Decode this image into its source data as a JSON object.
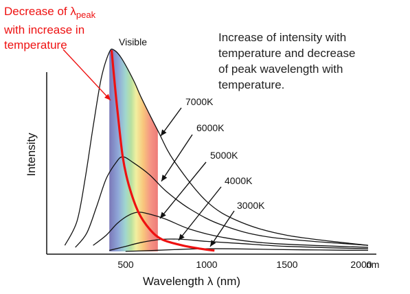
{
  "annotations": {
    "red_title": {
      "line1_prefix": "Decrease of λ",
      "line1_subscript": "peak",
      "line2": "with increase in",
      "line3": "temperature"
    },
    "note_lines": [
      "Increase of intensity with",
      "temperature and decrease",
      "of peak wavelength with",
      "temperature."
    ],
    "visible_label": "Visible"
  },
  "chart_data": {
    "type": "line",
    "xlabel": "Wavelength λ (nm)",
    "ylabel": "Intensity",
    "x_unit": "nm",
    "xlim": [
      0,
      2000
    ],
    "x_ticks": [
      "500",
      "1000",
      "1500",
      "2000"
    ],
    "visible_band_nm": [
      400,
      700
    ],
    "series": [
      {
        "name": "7000K",
        "peak_nm": 414,
        "peak_rel": 1.0,
        "points": [
          [
            125,
            0.03
          ],
          [
            200,
            0.15
          ],
          [
            250,
            0.36
          ],
          [
            300,
            0.62
          ],
          [
            350,
            0.86
          ],
          [
            400,
            0.99
          ],
          [
            430,
            1.0
          ],
          [
            475,
            0.96
          ],
          [
            550,
            0.85
          ],
          [
            600,
            0.76
          ],
          [
            700,
            0.6
          ],
          [
            800,
            0.45
          ],
          [
            1000,
            0.25
          ],
          [
            1200,
            0.15
          ],
          [
            1500,
            0.08
          ],
          [
            2000,
            0.03
          ]
        ]
      },
      {
        "name": "6000K",
        "peak_nm": 483,
        "peak_rel": 0.47,
        "points": [
          [
            190,
            0.02
          ],
          [
            260,
            0.09
          ],
          [
            320,
            0.22
          ],
          [
            380,
            0.36
          ],
          [
            440,
            0.44
          ],
          [
            483,
            0.47
          ],
          [
            550,
            0.44
          ],
          [
            650,
            0.38
          ],
          [
            750,
            0.3
          ],
          [
            900,
            0.21
          ],
          [
            1100,
            0.13
          ],
          [
            1400,
            0.07
          ],
          [
            2000,
            0.03
          ]
        ]
      },
      {
        "name": "5000K",
        "peak_nm": 580,
        "peak_rel": 0.195,
        "points": [
          [
            300,
            0.03
          ],
          [
            380,
            0.08
          ],
          [
            450,
            0.14
          ],
          [
            520,
            0.18
          ],
          [
            580,
            0.195
          ],
          [
            650,
            0.185
          ],
          [
            750,
            0.16
          ],
          [
            900,
            0.11
          ],
          [
            1100,
            0.07
          ],
          [
            1400,
            0.04
          ],
          [
            2000,
            0.02
          ]
        ]
      },
      {
        "name": "4000K",
        "peak_nm": 725,
        "peak_rel": 0.06,
        "points": [
          [
            400,
            0.005
          ],
          [
            500,
            0.025
          ],
          [
            600,
            0.045
          ],
          [
            725,
            0.06
          ],
          [
            850,
            0.06
          ],
          [
            1000,
            0.05
          ],
          [
            1200,
            0.04
          ],
          [
            1500,
            0.025
          ],
          [
            2000,
            0.013
          ]
        ]
      },
      {
        "name": "3000K",
        "peak_nm": 966,
        "peak_rel": 0.013,
        "points": [
          [
            500,
            0.0
          ],
          [
            650,
            0.004
          ],
          [
            800,
            0.009
          ],
          [
            966,
            0.013
          ],
          [
            1150,
            0.013
          ],
          [
            1400,
            0.01
          ],
          [
            1700,
            0.007
          ],
          [
            2000,
            0.005
          ]
        ]
      }
    ],
    "peak_trend_line": {
      "color": "#ee1111",
      "points": [
        [
          414,
          1.0
        ],
        [
          430,
          0.86
        ],
        [
          450,
          0.7
        ],
        [
          483,
          0.47
        ],
        [
          520,
          0.33
        ],
        [
          580,
          0.195
        ],
        [
          650,
          0.11
        ],
        [
          725,
          0.06
        ],
        [
          850,
          0.03
        ],
        [
          966,
          0.013
        ],
        [
          1050,
          0.004
        ]
      ]
    },
    "temperature_labels": [
      "7000K",
      "6000K",
      "5000K",
      "4000K",
      "3000K"
    ]
  },
  "colors": {
    "curve": "#111111",
    "peak_trend": "#ee1111",
    "annotation_red": "#ee1111"
  }
}
